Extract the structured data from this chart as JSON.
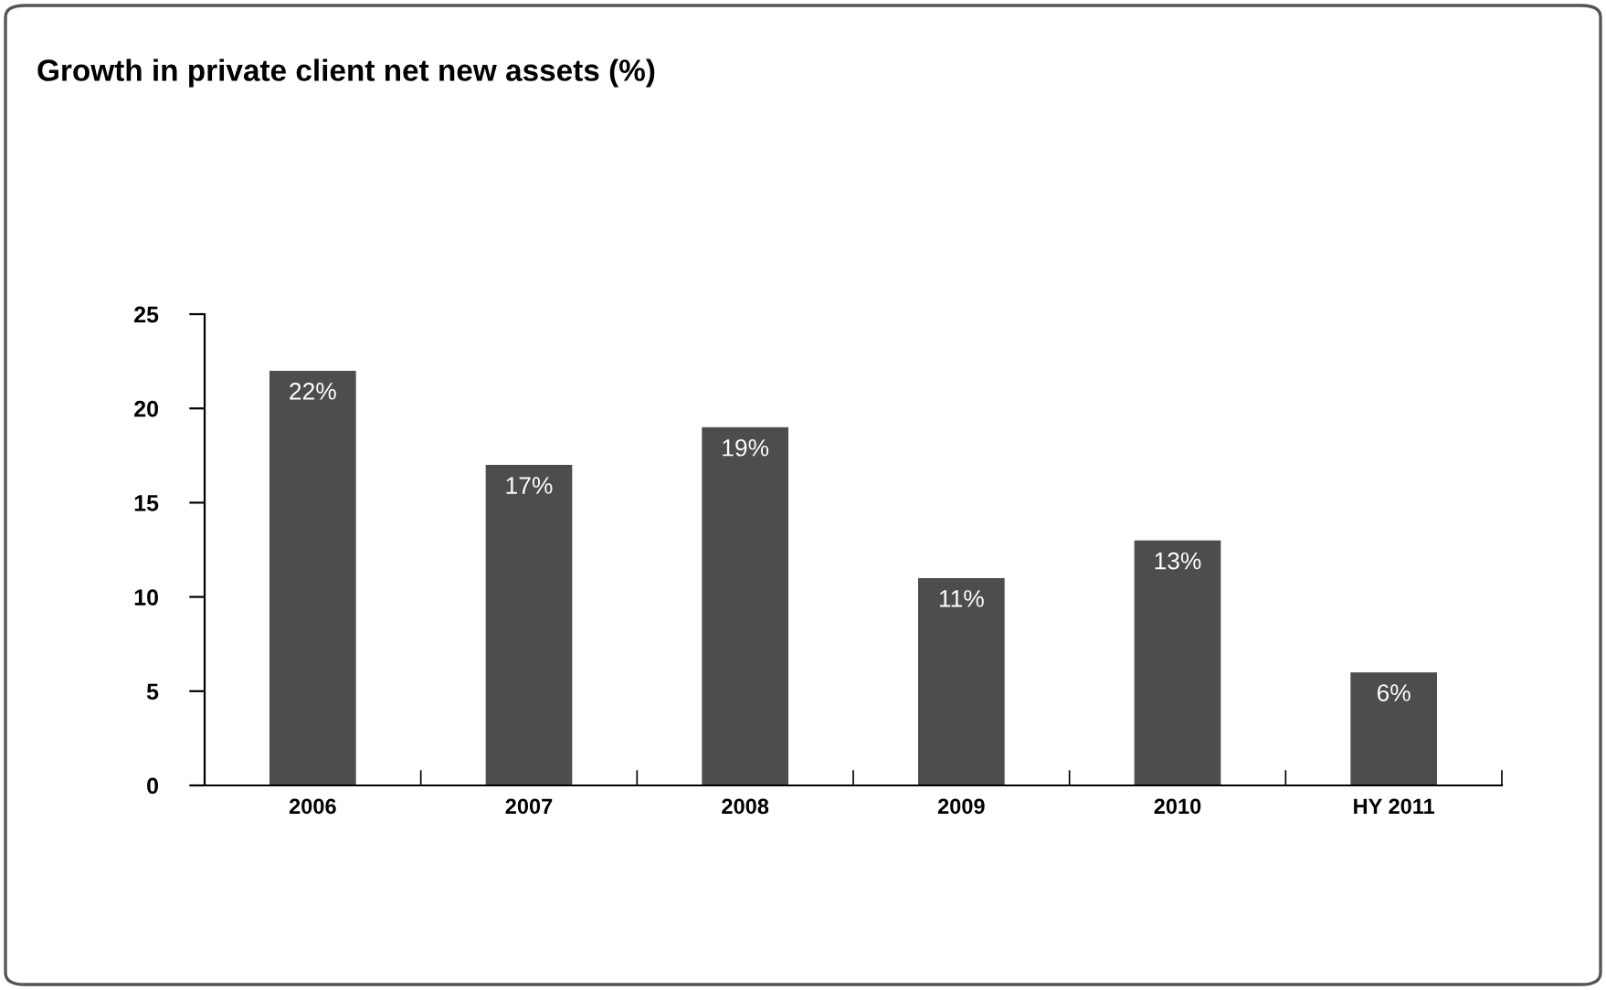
{
  "chart_data": {
    "type": "bar",
    "title": "Growth in private client net new assets (%)",
    "categories": [
      "2006",
      "2007",
      "2008",
      "2009",
      "2010",
      "HY 2011"
    ],
    "values": [
      22,
      17,
      19,
      11,
      13,
      6
    ],
    "value_labels": [
      "22%",
      "17%",
      "19%",
      "11%",
      "13%",
      "6%"
    ],
    "color": "#4d4d4d",
    "ylim": [
      0,
      25
    ],
    "yticks": [
      0,
      5,
      10,
      15,
      20,
      25
    ],
    "grid": false,
    "legend": false
  }
}
